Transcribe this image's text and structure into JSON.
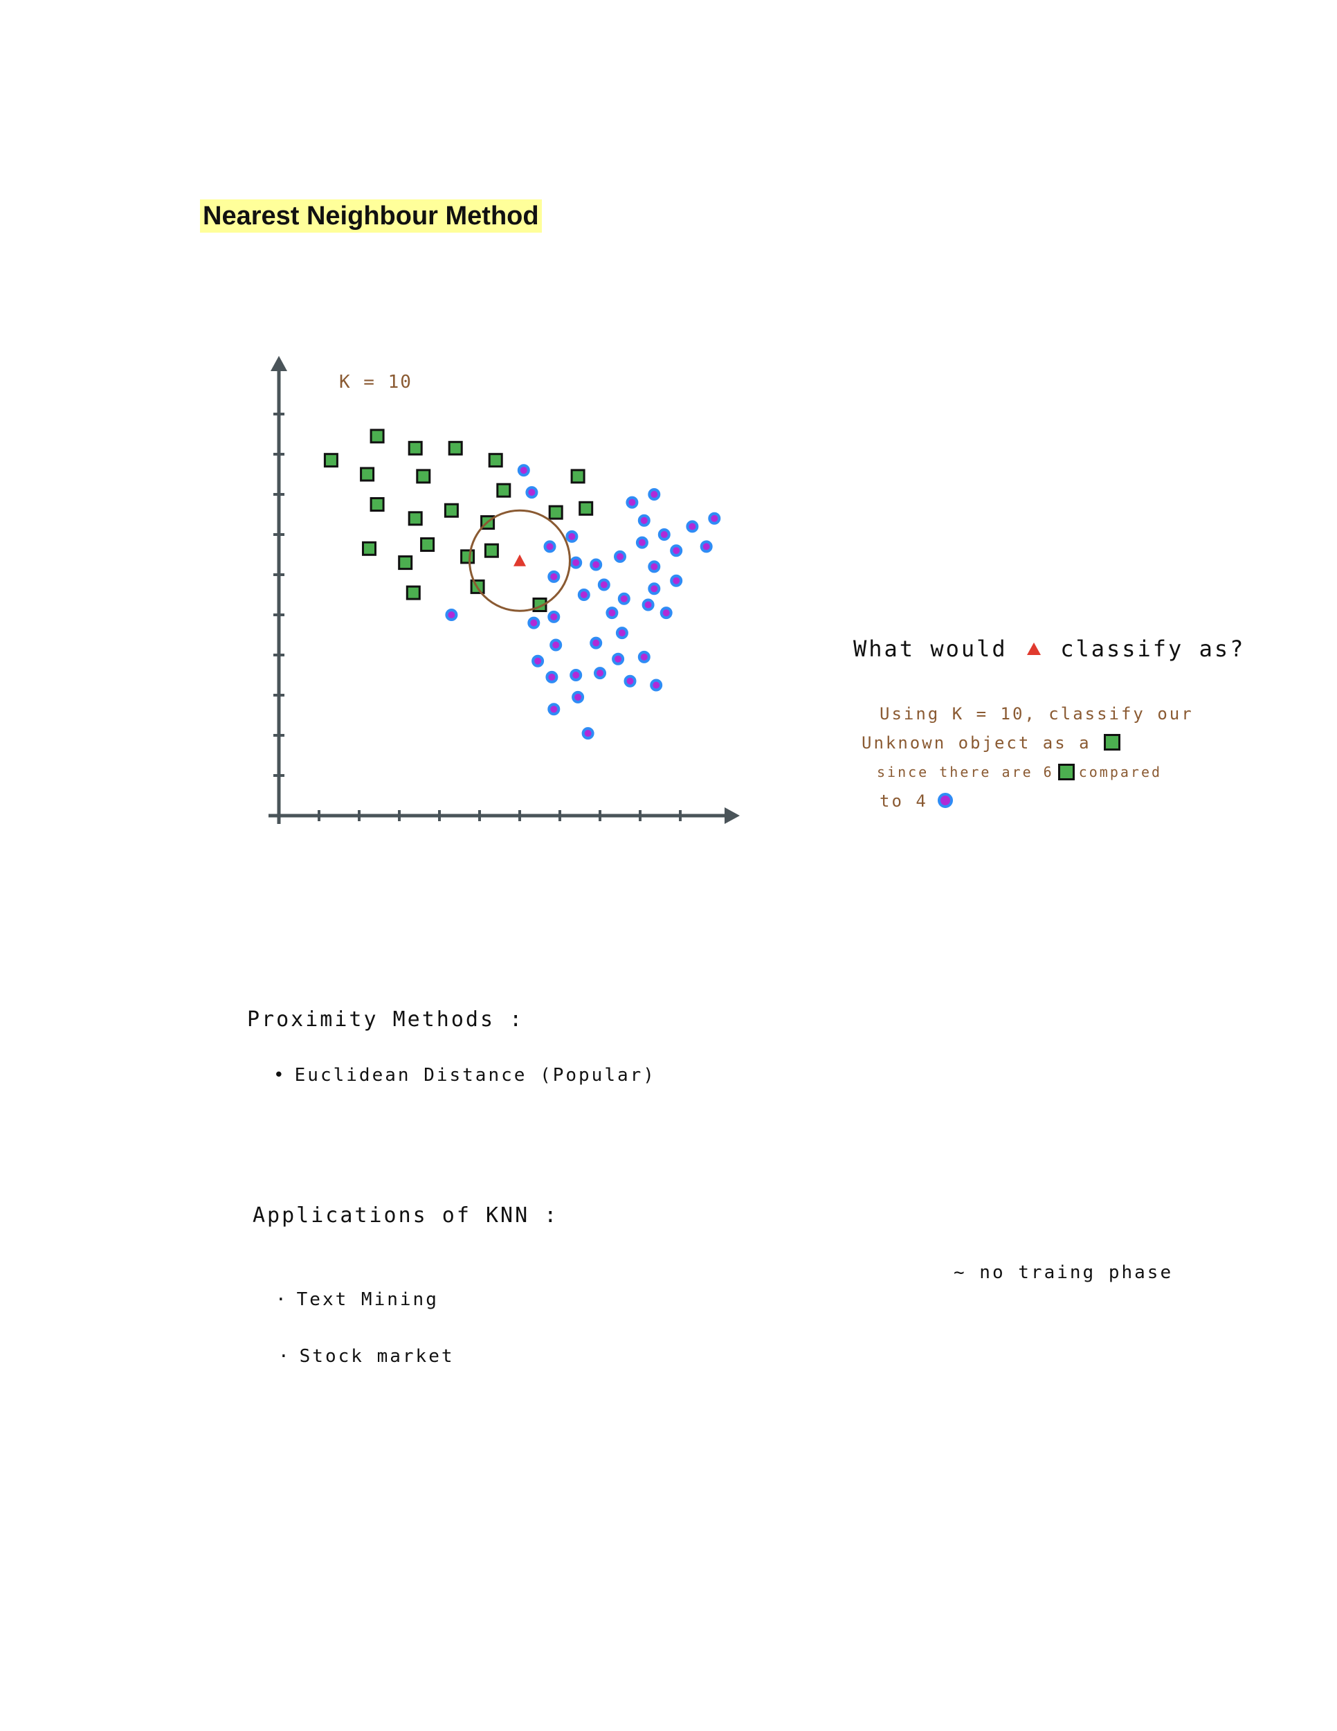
{
  "title": "Nearest Neighbour Method",
  "chart_data": {
    "type": "scatter",
    "k_label": "K = 10",
    "xlim": [
      0,
      11
    ],
    "ylim": [
      0,
      11
    ],
    "grid": false,
    "colors": {
      "axis": "#4a5459",
      "square_fill": "#4caf50",
      "square_border": "#111111",
      "circle_fill": "#b02ad6",
      "circle_ring": "#2f8cf5",
      "triangle": "#e03a2e",
      "neighbour_circle": "#8a5a32"
    },
    "query_point": {
      "x": 6.0,
      "y": 6.35
    },
    "neighbour_radius": 1.25,
    "series": [
      {
        "marker": "square",
        "points": [
          [
            1.3,
            8.85
          ],
          [
            2.45,
            9.45
          ],
          [
            3.4,
            9.15
          ],
          [
            4.4,
            9.15
          ],
          [
            5.4,
            8.85
          ],
          [
            2.2,
            8.5
          ],
          [
            3.6,
            8.45
          ],
          [
            5.6,
            8.1
          ],
          [
            7.45,
            8.45
          ],
          [
            2.45,
            7.75
          ],
          [
            4.3,
            7.6
          ],
          [
            3.4,
            7.4
          ],
          [
            5.2,
            7.3
          ],
          [
            6.9,
            7.55
          ],
          [
            7.65,
            7.65
          ],
          [
            2.25,
            6.65
          ],
          [
            3.7,
            6.75
          ],
          [
            5.3,
            6.6
          ],
          [
            4.7,
            6.45
          ],
          [
            3.15,
            6.3
          ],
          [
            3.35,
            5.55
          ],
          [
            4.95,
            5.7
          ],
          [
            6.5,
            5.25
          ]
        ]
      },
      {
        "marker": "circle",
        "points": [
          [
            6.1,
            8.6
          ],
          [
            6.3,
            8.05
          ],
          [
            9.35,
            8.0
          ],
          [
            8.8,
            7.8
          ],
          [
            7.3,
            6.95
          ],
          [
            9.1,
            7.35
          ],
          [
            9.6,
            7.0
          ],
          [
            10.3,
            7.2
          ],
          [
            10.85,
            7.4
          ],
          [
            6.75,
            6.7
          ],
          [
            9.05,
            6.8
          ],
          [
            9.9,
            6.6
          ],
          [
            10.65,
            6.7
          ],
          [
            7.4,
            6.3
          ],
          [
            7.9,
            6.25
          ],
          [
            8.5,
            6.45
          ],
          [
            9.35,
            6.2
          ],
          [
            6.85,
            5.95
          ],
          [
            8.1,
            5.75
          ],
          [
            7.6,
            5.5
          ],
          [
            9.35,
            5.65
          ],
          [
            9.9,
            5.85
          ],
          [
            4.3,
            5.0
          ],
          [
            8.6,
            5.4
          ],
          [
            9.2,
            5.25
          ],
          [
            6.85,
            4.95
          ],
          [
            8.3,
            5.05
          ],
          [
            9.65,
            5.05
          ],
          [
            6.35,
            4.8
          ],
          [
            8.55,
            4.55
          ],
          [
            6.9,
            4.25
          ],
          [
            7.9,
            4.3
          ],
          [
            6.45,
            3.85
          ],
          [
            8.45,
            3.9
          ],
          [
            9.1,
            3.95
          ],
          [
            6.8,
            3.45
          ],
          [
            7.4,
            3.5
          ],
          [
            8.0,
            3.55
          ],
          [
            8.75,
            3.35
          ],
          [
            9.4,
            3.25
          ],
          [
            7.45,
            2.95
          ],
          [
            6.85,
            2.65
          ],
          [
            7.7,
            2.05
          ]
        ]
      }
    ]
  },
  "question": {
    "before": "What would",
    "after": "classify as?"
  },
  "answer": {
    "line1": "Using K = 10, classify our",
    "line2": "Unknown object as a",
    "line3_a": "since there are 6",
    "line3_b": "compared",
    "line4": "to 4"
  },
  "proximity": {
    "heading": "Proximity Methods :",
    "items": [
      "Euclidean Distance  (Popular)"
    ]
  },
  "applications": {
    "heading": "Applications of KNN :",
    "items": [
      "Text Mining",
      "Stock market"
    ]
  },
  "side_note": "~ no traing phase"
}
